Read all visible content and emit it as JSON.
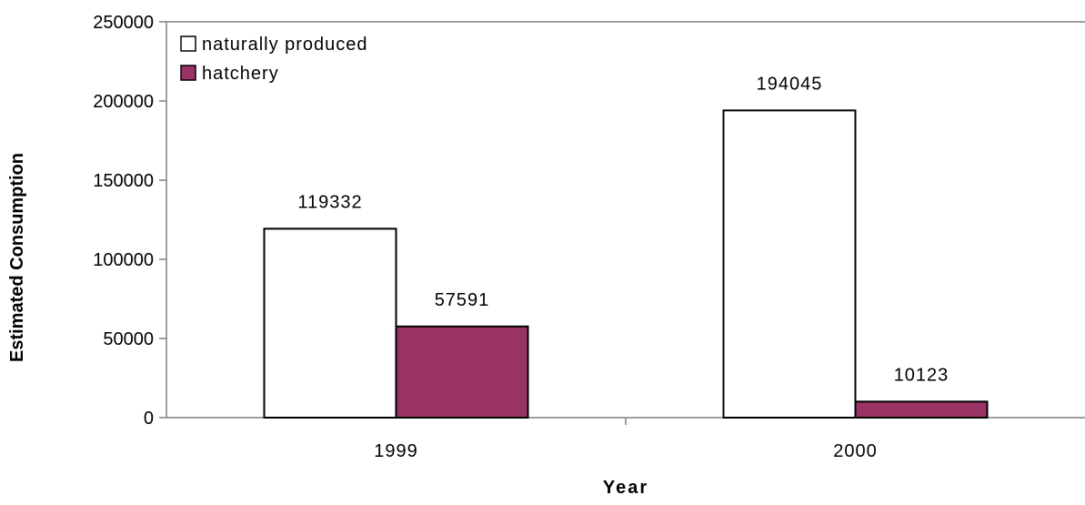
{
  "chart_data": {
    "type": "bar",
    "title": "",
    "xlabel": "Year",
    "ylabel": "Estimated Consumption",
    "categories": [
      "1999",
      "2000"
    ],
    "series": [
      {
        "name": "naturally produced",
        "values": [
          119332,
          194045
        ],
        "color": "#ffffff"
      },
      {
        "name": "hatchery",
        "values": [
          57591,
          10123
        ],
        "color": "#993366"
      }
    ],
    "ylim": [
      0,
      250000
    ],
    "yticks": [
      0,
      50000,
      100000,
      150000,
      200000,
      250000
    ],
    "legend_position": "top-left",
    "grid": false
  }
}
